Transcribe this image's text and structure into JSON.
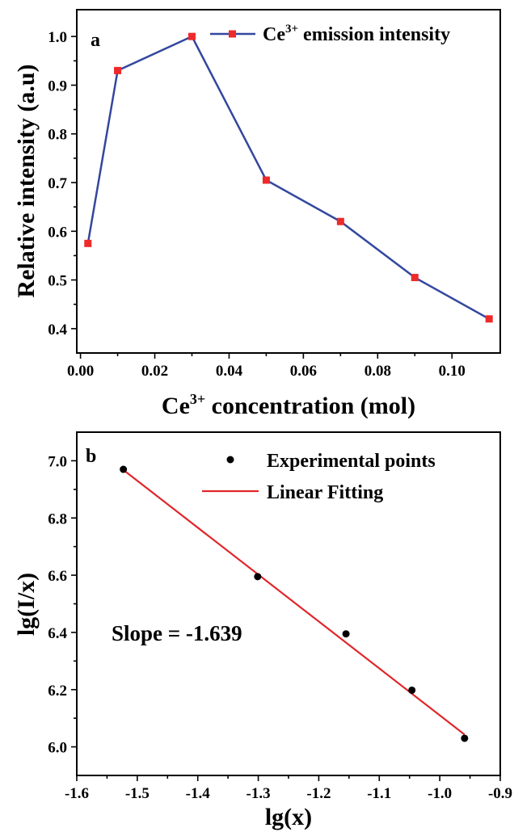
{
  "chart_data": [
    {
      "type": "line",
      "panel_label": "a",
      "xlabel_main": "Ce",
      "xlabel_sup": "3+",
      "xlabel_rest": " concentration (mol)",
      "ylabel": "Relative intensity (a.u)",
      "xlim": [
        -0.001,
        0.113
      ],
      "ylim": [
        0.35,
        1.055
      ],
      "x_ticks": [
        "0.00",
        "0.02",
        "0.04",
        "0.06",
        "0.08",
        "0.10"
      ],
      "y_ticks": [
        "0.4",
        "0.5",
        "0.6",
        "0.7",
        "0.8",
        "0.9",
        "1.0"
      ],
      "legend_placement": "top-right",
      "series": [
        {
          "name_main": "Ce",
          "name_sup": "3+",
          "name_rest": " emission intensity",
          "line_color": "#33479e",
          "marker_color": "#ee2a2a",
          "marker": "square",
          "x": [
            0.002,
            0.01,
            0.03,
            0.05,
            0.07,
            0.09,
            0.11
          ],
          "y": [
            0.575,
            0.93,
            1.0,
            0.705,
            0.62,
            0.505,
            0.42
          ]
        }
      ]
    },
    {
      "type": "scatter",
      "panel_label": "b",
      "xlabel": "lg(x)",
      "ylabel": "lg(I/x)",
      "xlim": [
        -1.6,
        -0.9
      ],
      "ylim": [
        5.9,
        7.1
      ],
      "x_ticks": [
        "-1.6",
        "-1.5",
        "-1.4",
        "-1.3",
        "-1.2",
        "-1.1",
        "-1.0",
        "-0.9"
      ],
      "y_ticks": [
        "6.0",
        "6.2",
        "6.4",
        "6.6",
        "6.8",
        "7.0"
      ],
      "legend_placement": "top-right",
      "annotation": "Slope = -1.639",
      "points": {
        "name": "Experimental points",
        "color": "#000000",
        "x": [
          -1.523,
          -1.301,
          -1.155,
          -1.046,
          -0.959
        ],
        "y": [
          6.97,
          6.595,
          6.395,
          6.198,
          6.03
        ]
      },
      "fit": {
        "name": "Linear Fitting",
        "color": "#e0262a",
        "x": [
          -1.523,
          -0.959
        ],
        "y": [
          6.968,
          6.043
        ]
      }
    }
  ]
}
